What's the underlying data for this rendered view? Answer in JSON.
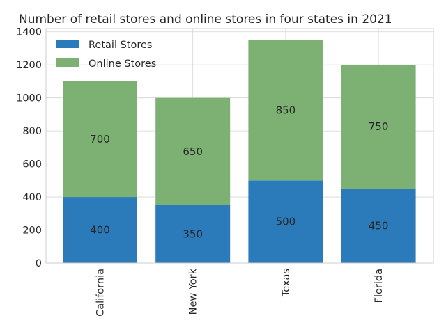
{
  "chart_data": {
    "type": "bar",
    "stacked": true,
    "title": "Number of retail stores and online stores in four states in 2021",
    "categories": [
      "California",
      "New York",
      "Texas",
      "Florida"
    ],
    "series": [
      {
        "name": "Retail Stores",
        "values": [
          400,
          350,
          500,
          450
        ],
        "color": "#2b7bba"
      },
      {
        "name": "Online Stores",
        "values": [
          700,
          650,
          850,
          750
        ],
        "color": "#7db174"
      }
    ],
    "xlabel": "",
    "ylabel": "",
    "ylim": [
      0,
      1420
    ],
    "yticks": [
      0,
      200,
      400,
      600,
      800,
      1000,
      1200,
      1400
    ],
    "grid": true,
    "legend": "top-left"
  }
}
